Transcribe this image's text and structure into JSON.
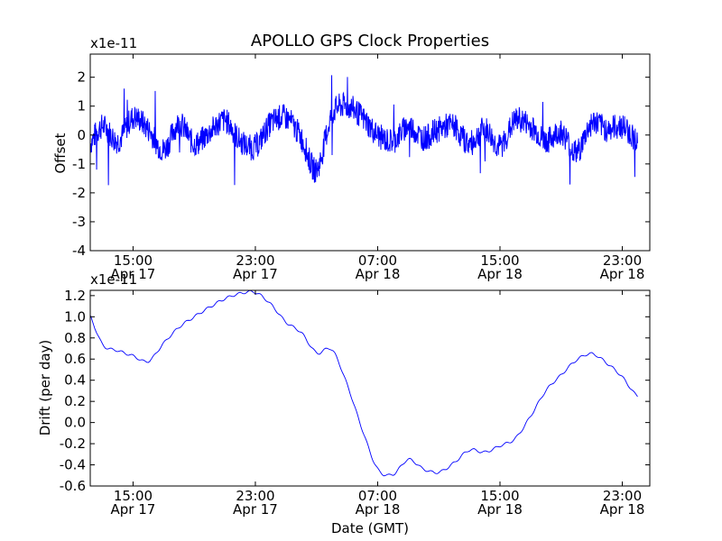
{
  "title": "APOLLO GPS Clock Properties",
  "chart_data": [
    {
      "type": "line",
      "name": "offset",
      "ylabel": "Offset",
      "xlabel": "",
      "y_scale_label": "x1e-11",
      "ylim": [
        -4,
        2.8
      ],
      "xlim_hours": [
        12.2,
        24.8
      ],
      "yticks": [
        "2",
        "1",
        "0",
        "-1",
        "-2",
        "-3",
        "-4"
      ],
      "ytick_values": [
        2,
        1,
        0,
        -1,
        -2,
        -3,
        -4
      ],
      "xticks": [
        {
          "time": "15:00",
          "date": "Apr 17"
        },
        {
          "time": "23:00",
          "date": "Apr 17"
        },
        {
          "time": "07:00",
          "date": "Apr 18"
        },
        {
          "time": "15:00",
          "date": "Apr 18"
        },
        {
          "time": "23:00",
          "date": "Apr 18"
        }
      ],
      "series_color": "#0000ff",
      "grid": false,
      "series": [
        {
          "x": [
            "Apr 17 12:00",
            "Apr 17 13:00",
            "Apr 17 14:00",
            "Apr 17 15:00",
            "Apr 17 16:00",
            "Apr 17 17:00",
            "Apr 17 18:00",
            "Apr 17 19:00",
            "Apr 17 20:00",
            "Apr 17 21:00",
            "Apr 17 22:00",
            "Apr 17 23:00",
            "Apr 18 00:00",
            "Apr 18 01:00",
            "Apr 18 02:00",
            "Apr 18 03:00",
            "Apr 18 04:00",
            "Apr 18 05:00",
            "Apr 18 06:00",
            "Apr 18 07:00",
            "Apr 18 08:00",
            "Apr 18 09:00",
            "Apr 18 10:00",
            "Apr 18 11:00",
            "Apr 18 12:00",
            "Apr 18 13:00",
            "Apr 18 14:00",
            "Apr 18 15:00",
            "Apr 18 16:00",
            "Apr 18 17:00",
            "Apr 18 18:00",
            "Apr 18 19:00",
            "Apr 18 20:00",
            "Apr 18 21:00",
            "Apr 18 22:00",
            "Apr 18 23:00",
            "Apr 19 00:00"
          ],
          "values": [
            -0.4,
            0.3,
            -0.2,
            0.6,
            0.2,
            -0.5,
            0.4,
            -0.3,
            0.1,
            0.5,
            -0.2,
            -0.4,
            0.4,
            0.6,
            -0.1,
            -1.2,
            0.7,
            1.0,
            0.6,
            0.0,
            -0.2,
            0.3,
            -0.1,
            0.2,
            0.3,
            -0.3,
            0.2,
            -0.4,
            0.5,
            0.3,
            -0.2,
            0.1,
            -0.6,
            0.4,
            0.2,
            0.3,
            -0.2
          ]
        }
      ]
    },
    {
      "type": "line",
      "name": "drift",
      "ylabel": "Drift (per day)",
      "xlabel": "Date (GMT)",
      "y_scale_label": "x1e-11",
      "ylim": [
        -0.6,
        1.25
      ],
      "xlim_hours": [
        12.2,
        24.8
      ],
      "yticks": [
        "1.2",
        "1.0",
        "0.8",
        "0.6",
        "0.4",
        "0.2",
        "0.0",
        "-0.2",
        "-0.4",
        "-0.6"
      ],
      "ytick_values": [
        1.2,
        1.0,
        0.8,
        0.6,
        0.4,
        0.2,
        0.0,
        -0.2,
        -0.4,
        -0.6
      ],
      "xticks": [
        {
          "time": "15:00",
          "date": "Apr 17"
        },
        {
          "time": "23:00",
          "date": "Apr 17"
        },
        {
          "time": "07:00",
          "date": "Apr 18"
        },
        {
          "time": "15:00",
          "date": "Apr 18"
        },
        {
          "time": "23:00",
          "date": "Apr 18"
        }
      ],
      "series_color": "#0000ff",
      "grid": false,
      "series": [
        {
          "x": [
            "Apr 17 12:00",
            "Apr 17 13:00",
            "Apr 17 14:00",
            "Apr 17 15:00",
            "Apr 17 16:00",
            "Apr 17 17:00",
            "Apr 17 18:00",
            "Apr 17 19:00",
            "Apr 17 20:00",
            "Apr 17 21:00",
            "Apr 17 22:00",
            "Apr 17 23:00",
            "Apr 18 00:00",
            "Apr 18 01:00",
            "Apr 18 02:00",
            "Apr 18 03:00",
            "Apr 18 04:00",
            "Apr 18 05:00",
            "Apr 18 06:00",
            "Apr 18 07:00",
            "Apr 18 08:00",
            "Apr 18 09:00",
            "Apr 18 10:00",
            "Apr 18 11:00",
            "Apr 18 12:00",
            "Apr 18 13:00",
            "Apr 18 14:00",
            "Apr 18 15:00",
            "Apr 18 16:00",
            "Apr 18 17:00",
            "Apr 18 18:00",
            "Apr 18 19:00",
            "Apr 18 20:00",
            "Apr 18 21:00",
            "Apr 18 22:00",
            "Apr 18 23:00",
            "Apr 19 00:00"
          ],
          "values": [
            1.05,
            0.74,
            0.68,
            0.63,
            0.58,
            0.75,
            0.9,
            1.0,
            1.09,
            1.17,
            1.22,
            1.23,
            1.12,
            0.95,
            0.85,
            0.66,
            0.69,
            0.36,
            -0.07,
            -0.44,
            -0.49,
            -0.35,
            -0.44,
            -0.47,
            -0.38,
            -0.26,
            -0.28,
            -0.22,
            -0.15,
            0.06,
            0.3,
            0.45,
            0.59,
            0.65,
            0.56,
            0.43,
            0.25
          ]
        }
      ]
    }
  ]
}
